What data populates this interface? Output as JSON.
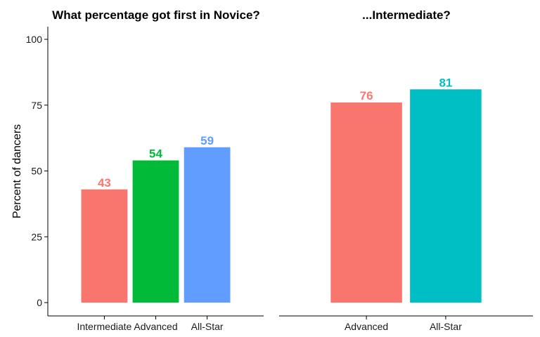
{
  "y_axis_label": "Percent of dancers",
  "chart_data": [
    {
      "type": "bar",
      "title": "What percentage got first in Novice?",
      "xlabel": "",
      "ylabel": "Percent of dancers",
      "categories": [
        "Intermediate",
        "Advanced",
        "All-Star"
      ],
      "values": [
        43,
        54,
        59
      ],
      "data_labels": [
        "43",
        "54",
        "59"
      ],
      "colors": [
        "#F8766D",
        "#00BA38",
        "#619CFF"
      ],
      "ylim": [
        0,
        100
      ],
      "yticks": [
        0,
        25,
        50,
        75,
        100
      ],
      "ytick_labels": [
        "0",
        "25",
        "50",
        "75",
        "100"
      ],
      "grid": false,
      "legend": "none"
    },
    {
      "type": "bar",
      "title": "...Intermediate?",
      "xlabel": "",
      "ylabel": "",
      "categories": [
        "Advanced",
        "All-Star"
      ],
      "values": [
        76,
        81
      ],
      "data_labels": [
        "76",
        "81"
      ],
      "colors": [
        "#F8766D",
        "#00BFC4"
      ],
      "ylim": [
        0,
        100
      ],
      "grid": false,
      "legend": "none"
    }
  ]
}
